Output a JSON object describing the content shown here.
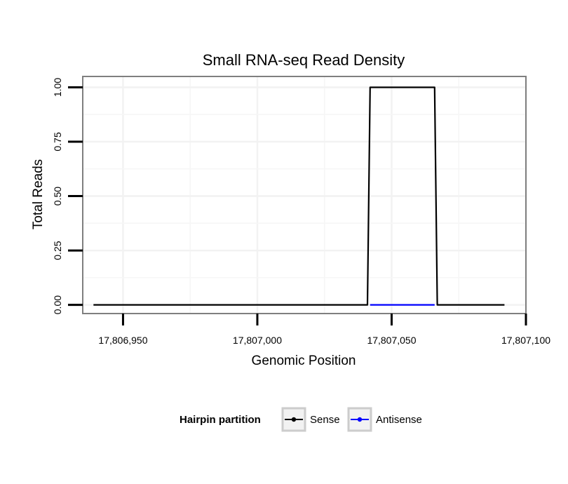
{
  "chart_data": {
    "type": "line",
    "title": "Small RNA-seq Read Density",
    "xlabel": "Genomic Position",
    "ylabel": "Total Reads",
    "xlim": [
      17806935,
      17807100
    ],
    "ylim": [
      -0.04,
      1.05
    ],
    "x_ticks": [
      17806950,
      17807000,
      17807050,
      17807100
    ],
    "x_tick_labels": [
      "17,806,950",
      "17,807,000",
      "17,807,050",
      "17,807,100"
    ],
    "y_ticks": [
      0,
      0.25,
      0.5,
      0.75,
      1
    ],
    "y_tick_labels": [
      "0.00",
      "0.25",
      "0.50",
      "0.75",
      "1.00"
    ],
    "grid": true,
    "legend": {
      "title": "Hairpin partition",
      "position": "bottom"
    },
    "series": [
      {
        "name": "Sense",
        "color": "#000000",
        "x": [
          17806939,
          17807041,
          17807042,
          17807059,
          17807066,
          17807067,
          17807092
        ],
        "y": [
          0,
          0,
          1,
          1,
          1,
          0,
          0
        ]
      },
      {
        "name": "Antisense",
        "color": "#0000ff",
        "x": [
          17807042,
          17807066
        ],
        "y": [
          0,
          0
        ]
      }
    ]
  }
}
